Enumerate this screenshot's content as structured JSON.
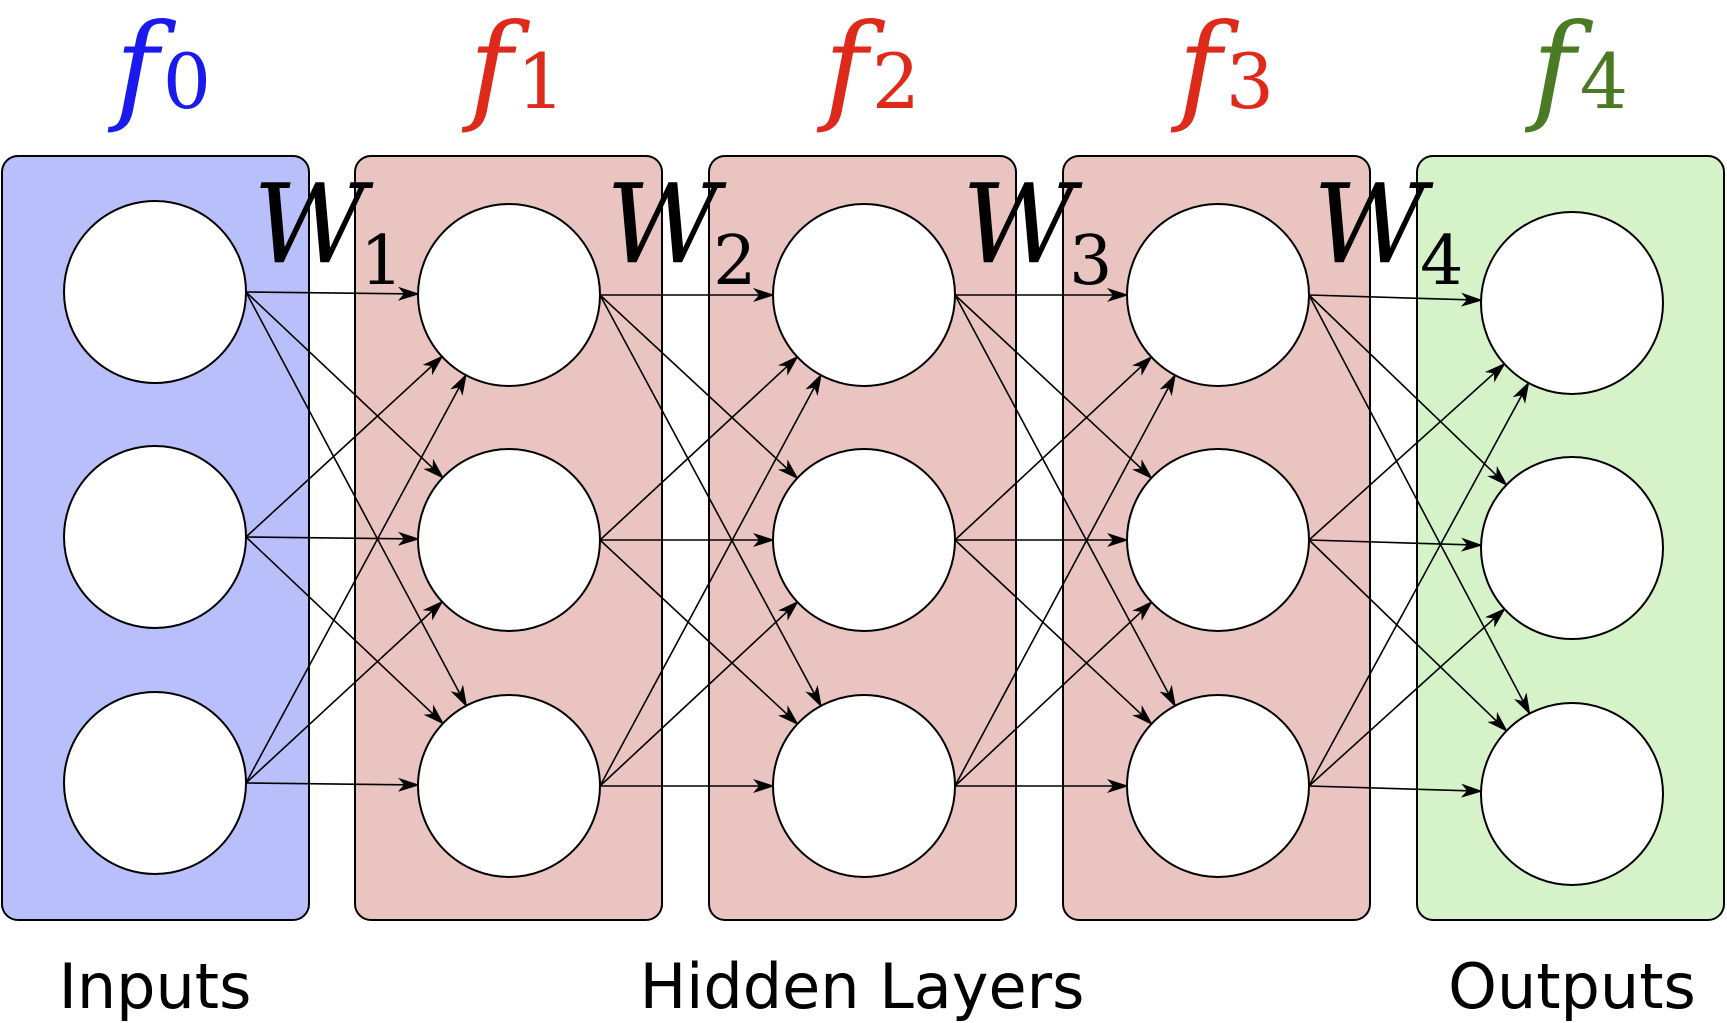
{
  "layers": [
    {
      "symbol": "f",
      "index": "0",
      "color": "#1a1aee",
      "fill": "#b8bffb",
      "role": "input"
    },
    {
      "symbol": "f",
      "index": "1",
      "color": "#dd2a1a",
      "fill": "#eac4c0",
      "role": "hidden"
    },
    {
      "symbol": "f",
      "index": "2",
      "color": "#dd2a1a",
      "fill": "#eac4c0",
      "role": "hidden"
    },
    {
      "symbol": "f",
      "index": "3",
      "color": "#dd2a1a",
      "fill": "#eac4c0",
      "role": "hidden"
    },
    {
      "symbol": "f",
      "index": "4",
      "color": "#4a7a24",
      "fill": "#d6f2c8",
      "role": "output"
    }
  ],
  "nodes_per_layer": 3,
  "weights": [
    {
      "symbol": "W",
      "index": "1"
    },
    {
      "symbol": "W",
      "index": "2"
    },
    {
      "symbol": "W",
      "index": "3"
    },
    {
      "symbol": "W",
      "index": "4"
    }
  ],
  "captions": {
    "inputs": "Inputs",
    "hidden": "Hidden Layers",
    "outputs": "Outputs"
  },
  "colors": {
    "stroke": "#000000",
    "node_fill": "#ffffff"
  }
}
